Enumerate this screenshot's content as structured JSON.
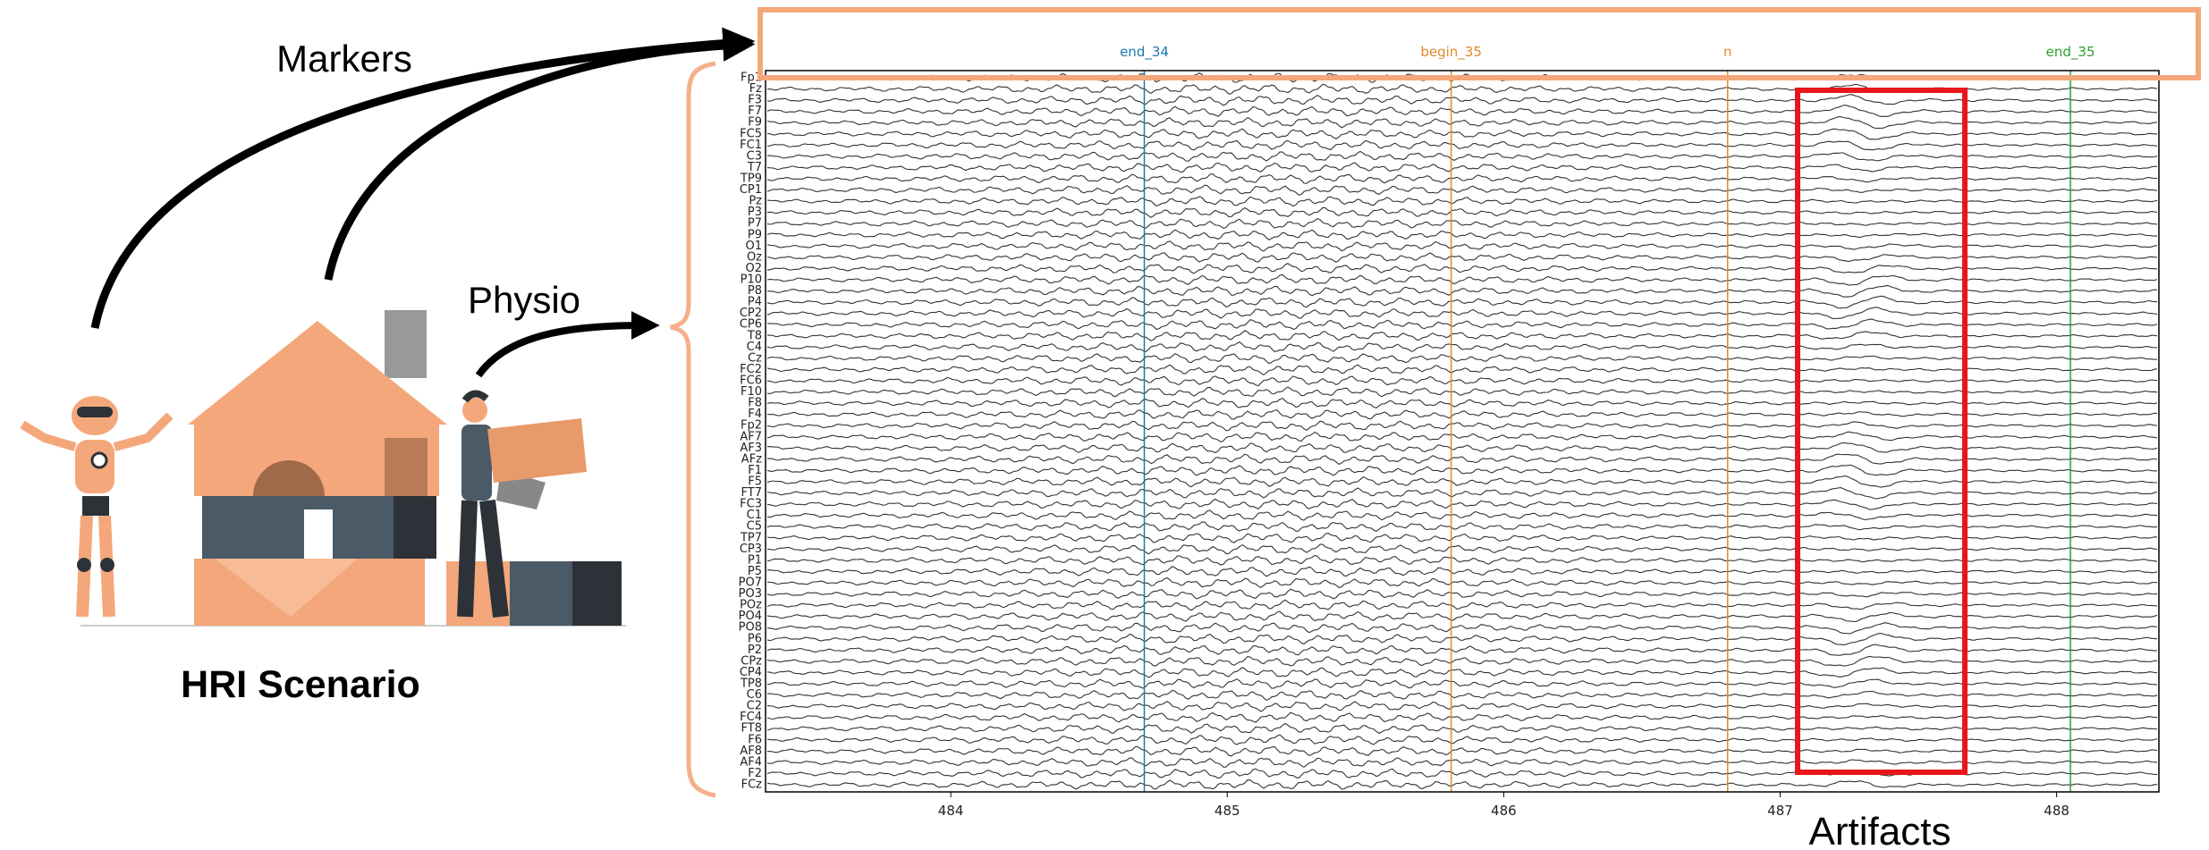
{
  "labels": {
    "markers": "Markers",
    "physio": "Physio",
    "scenario": "HRI Scenario",
    "artifacts": "Artifacts"
  },
  "eeg": {
    "channels": [
      "Fp1",
      "Fz",
      "F3",
      "F7",
      "F9",
      "FC5",
      "FC1",
      "C3",
      "T7",
      "TP9",
      "CP1",
      "Pz",
      "P3",
      "P7",
      "P9",
      "O1",
      "Oz",
      "O2",
      "P10",
      "P8",
      "P4",
      "CP2",
      "CP6",
      "T8",
      "C4",
      "Cz",
      "FC2",
      "FC6",
      "F10",
      "F8",
      "F4",
      "Fp2",
      "AF7",
      "AF3",
      "AFz",
      "F1",
      "F5",
      "FT7",
      "FC3",
      "C1",
      "C5",
      "TP7",
      "CP3",
      "P1",
      "P5",
      "PO7",
      "PO3",
      "POz",
      "PO4",
      "PO8",
      "P6",
      "P2",
      "CPz",
      "CP4",
      "TP8",
      "C6",
      "C2",
      "FC4",
      "FT8",
      "F6",
      "AF8",
      "AF4",
      "F2",
      "FCz"
    ],
    "xlim": [
      483.33,
      488.37
    ],
    "xticks": [
      484,
      485,
      486,
      487,
      488
    ],
    "events": [
      {
        "label": "end_34",
        "time": 484.7,
        "color": "#1f77b4"
      },
      {
        "label": "begin_35",
        "time": 485.81,
        "color": "#e08a2a"
      },
      {
        "label": "n",
        "time": 486.81,
        "color": "#e08a2a"
      },
      {
        "label": "end_35",
        "time": 488.05,
        "color": "#2ca02c"
      }
    ]
  }
}
